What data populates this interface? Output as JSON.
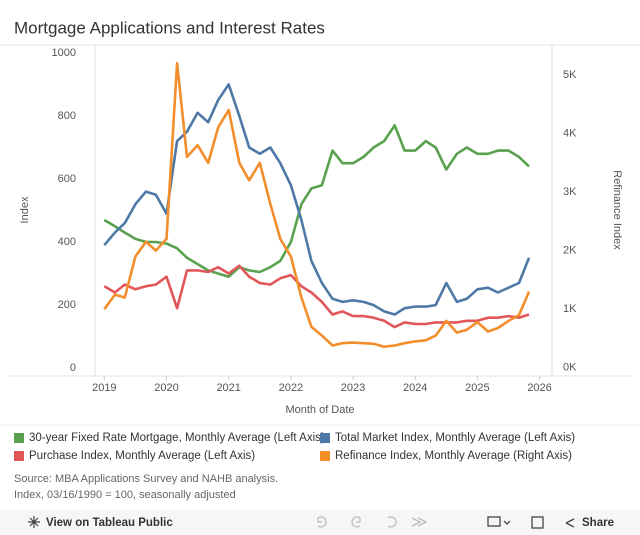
{
  "chart_data": {
    "type": "line",
    "title": "Mortgage Applications and Interest Rates",
    "xlabel": "Month of Date",
    "ylabel": "Index",
    "y2label": "Refinance Index",
    "x": [
      2019.0,
      2019.17,
      2019.33,
      2019.5,
      2019.67,
      2019.83,
      2020.0,
      2020.17,
      2020.33,
      2020.5,
      2020.67,
      2020.83,
      2021.0,
      2021.17,
      2021.33,
      2021.5,
      2021.67,
      2021.83,
      2022.0,
      2022.17,
      2022.33,
      2022.5,
      2022.67,
      2022.83,
      2023.0,
      2023.17,
      2023.33,
      2023.5,
      2023.67,
      2023.83,
      2024.0,
      2024.17,
      2024.33,
      2024.5,
      2024.67,
      2024.83,
      2025.0,
      2025.17,
      2025.33,
      2025.5,
      2025.67,
      2025.83
    ],
    "xlim": [
      2018.85,
      2026.2
    ],
    "xticks": [
      2019,
      2020,
      2021,
      2022,
      2023,
      2024,
      2025,
      2026
    ],
    "ylim": [
      -25,
      1025
    ],
    "yticks": [
      0,
      200,
      400,
      600,
      800,
      1000
    ],
    "y2lim": [
      -140,
      5510
    ],
    "y2ticks": [
      {
        "value": 0,
        "label": "0K"
      },
      {
        "value": 1000,
        "label": "1K"
      },
      {
        "value": 2000,
        "label": "2K"
      },
      {
        "value": 3000,
        "label": "3K"
      },
      {
        "value": 4000,
        "label": "4K"
      },
      {
        "value": 5000,
        "label": "5K"
      }
    ],
    "grid": false,
    "legend": "bottom",
    "series": [
      {
        "name": "30-year Fixed Rate Mortgage, Monthly Average (Left Axis)",
        "color": "#59a14f",
        "axis": "y",
        "values": [
          470,
          450,
          430,
          410,
          400,
          400,
          395,
          380,
          350,
          330,
          310,
          300,
          290,
          320,
          310,
          305,
          320,
          340,
          400,
          520,
          570,
          580,
          690,
          650,
          650,
          670,
          700,
          720,
          770,
          690,
          690,
          720,
          700,
          630,
          680,
          700,
          680,
          680,
          690,
          690,
          670,
          640
        ]
      },
      {
        "name": "Total Market Index, Monthly Average (Left Axis)",
        "color": "#4e79a7",
        "axis": "y",
        "values": [
          390,
          430,
          460,
          520,
          560,
          550,
          490,
          720,
          750,
          810,
          780,
          850,
          900,
          800,
          700,
          680,
          700,
          650,
          580,
          470,
          340,
          270,
          220,
          210,
          215,
          210,
          200,
          180,
          170,
          190,
          195,
          195,
          200,
          270,
          210,
          220,
          250,
          255,
          240,
          255,
          270,
          350
        ]
      },
      {
        "name": "Purchase Index, Monthly Average (Left Axis)",
        "color": "#e15759",
        "axis": "y",
        "values": [
          260,
          240,
          265,
          250,
          260,
          265,
          290,
          190,
          310,
          310,
          305,
          320,
          300,
          325,
          290,
          270,
          265,
          285,
          295,
          260,
          240,
          210,
          170,
          180,
          165,
          165,
          160,
          150,
          130,
          145,
          140,
          140,
          145,
          145,
          145,
          150,
          150,
          160,
          160,
          165,
          160,
          170
        ]
      },
      {
        "name": "Refinance Index, Monthly Average (Right Axis)",
        "color": "#f28e2b",
        "axis": "y2",
        "values": [
          1000,
          1250,
          1200,
          1900,
          2150,
          2000,
          2200,
          5200,
          3600,
          3800,
          3500,
          4100,
          4400,
          3500,
          3200,
          3500,
          2800,
          2200,
          1900,
          1200,
          700,
          550,
          380,
          420,
          430,
          420,
          410,
          360,
          380,
          420,
          450,
          470,
          550,
          800,
          600,
          650,
          780,
          620,
          680,
          800,
          900,
          1300
        ]
      }
    ],
    "source": [
      "Source: MBA Applications Survey and NAHB analysis.",
      "Index, 03/16/1990 = 100, seasonally adjusted"
    ],
    "toolbar": {
      "view": "View on Tableau Public",
      "share": "Share"
    }
  }
}
